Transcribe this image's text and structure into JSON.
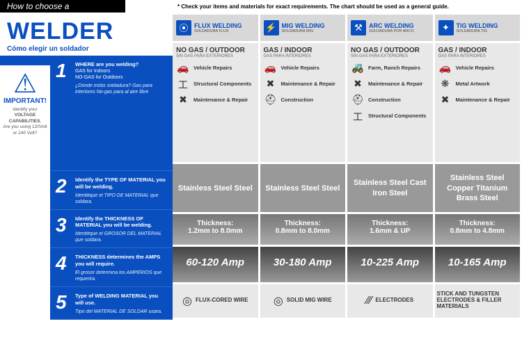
{
  "header": "How to choose a",
  "disclaimer": "* Check your items and materials for exact requirements. The chart should be used as a general guide.",
  "title": "WELDER",
  "subtitle": "Cómo elegir un soldador",
  "important": {
    "label": "IMPORTANT!",
    "text1": "Identify your",
    "text2": "VOLTAGE CAPABILITIES.",
    "text3": "Are you using 120Volt or 240 Volt?"
  },
  "steps": [
    {
      "n": "1",
      "q": "WHERE are you welding?",
      "l1": "GAS for Indoors",
      "l2": "NO-GAS for Outdoors",
      "sp": "¿Dónde estás soldadura? Gas para interiores No-gas para al aire libre"
    },
    {
      "n": "2",
      "q": "Identify the TYPE OF MATERIAL you will be welding.",
      "sp": "Identifique el TIPO DE MATERIAL que soldara."
    },
    {
      "n": "3",
      "q": "Identify the THICKNESS OF MATERIAL you will be welding.",
      "sp": "Identifique el GROSOR DEL MATERIAL que soldara."
    },
    {
      "n": "4",
      "q": "THICKNESS determines the AMPS you will require.",
      "sp": "El grosor determina los AMPERIOS que requerira."
    },
    {
      "n": "5",
      "q": "Type of WELDING MATERIAL you will use.",
      "sp": "Tipo del MATERIAL DE SOLDAR usara."
    }
  ],
  "cols": [
    {
      "icon": "⦿",
      "title": "FLUX WELDING",
      "sub": "SOLDADURA FLUX",
      "env": "NO GAS / OUTDOOR",
      "envsub": "SIN GAS PARA EXTERIORES",
      "uses": [
        {
          "i": "🚗",
          "t": "Vehicle Repairs"
        },
        {
          "i": "工",
          "t": "Structural Components"
        },
        {
          "i": "✖",
          "t": "Maintenance & Repair"
        }
      ],
      "mat": "Stainless Steel Steel",
      "th": "1.2mm to 8.0mm",
      "amp": "60-120 Amp",
      "wire": "FLUX-CORED WIRE",
      "wicon": "◎"
    },
    {
      "icon": "⚡",
      "title": "MIG WELDING",
      "sub": "SOLDADURA MIG",
      "env": "GAS / INDOOR",
      "envsub": "GAS PARA INTERIORES",
      "uses": [
        {
          "i": "🚗",
          "t": "Vehicle Repairs"
        },
        {
          "i": "✖",
          "t": "Maintenance & Repair"
        },
        {
          "i": "⛑",
          "t": "Construction"
        }
      ],
      "mat": "Stainless Steel Steel",
      "th": "0.8mm to 8.0mm",
      "amp": "30-180 Amp",
      "wire": "SOLID MIG WIRE",
      "wicon": "◎"
    },
    {
      "icon": "⚒",
      "title": "ARC WELDING",
      "sub": "SOLDADURA POR ARCO",
      "env": "NO GAS / OUTDOOR",
      "envsub": "SIN GAS PARA EXTERIORES",
      "uses": [
        {
          "i": "🚜",
          "t": "Farm, Ranch Repairs"
        },
        {
          "i": "✖",
          "t": "Maintenance & Repair"
        },
        {
          "i": "⛑",
          "t": "Construction"
        },
        {
          "i": "工",
          "t": "Structural Components"
        }
      ],
      "mat": "Stainless Steel Cast Iron Steel",
      "th": "1.6mm & UP",
      "amp": "10-225 Amp",
      "wire": "ELECTRODES",
      "wicon": "∕∕∕"
    },
    {
      "icon": "✦",
      "title": "TIG WELDING",
      "sub": "SOLDADURA TIG",
      "env": "GAS / INDOOR",
      "envsub": "GAS PARA INTERIORES",
      "uses": [
        {
          "i": "🚗",
          "t": "Vehicle Repairs"
        },
        {
          "i": "❋",
          "t": "Metal Artwork"
        },
        {
          "i": "✖",
          "t": "Maintenance & Repair"
        }
      ],
      "mat": "Stainless Steel Copper Titanium Brass Steel",
      "th": "0.8mm to 4.8mm",
      "amp": "10-165 Amp",
      "wire": "STICK AND TUNGSTEN ELECTRODES & FILLER MATERIALS",
      "wicon": ""
    }
  ],
  "thlabel": "Thickness:"
}
